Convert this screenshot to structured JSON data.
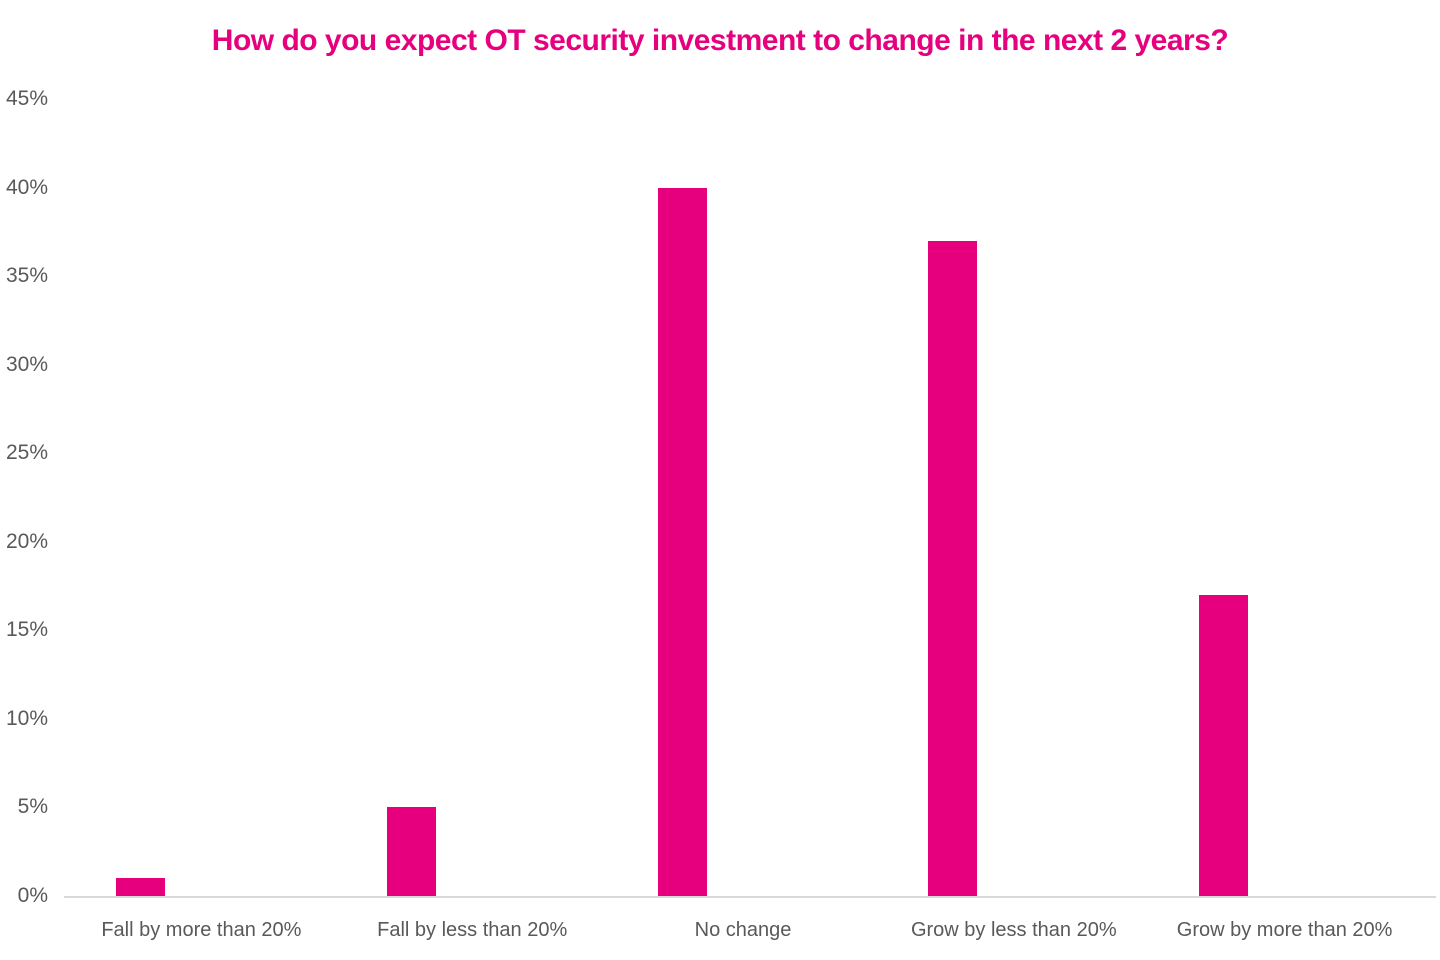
{
  "page": {
    "background_color": "#ffffff"
  },
  "chart_data": {
    "type": "bar",
    "title": "How do you expect OT security investment to change in the next 2 years?",
    "categories": [
      "Fall by more than 20%",
      "Fall by less than 20%",
      "No change",
      "Grow by less than 20%",
      "Grow by more than 20%"
    ],
    "values": [
      1,
      5,
      40,
      37,
      17
    ],
    "unit": "%",
    "xlabel": "",
    "ylabel": "",
    "ylim": [
      0,
      45
    ],
    "y_tick_step": 5,
    "y_tick_labels": [
      "0%",
      "5%",
      "10%",
      "15%",
      "20%",
      "25%",
      "30%",
      "35%",
      "40%",
      "45%"
    ],
    "grid": false,
    "legend_position": "none",
    "bar_color": "#E6007E",
    "title_color": "#E6007E",
    "axis_text_color": "#595959",
    "baseline_color": "#D9D9D9"
  }
}
